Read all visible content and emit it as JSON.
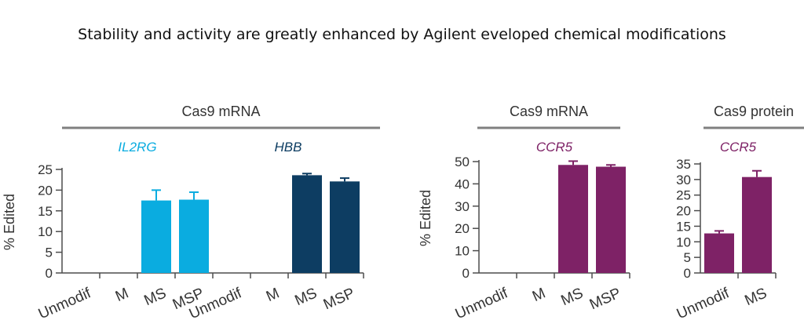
{
  "title": "Stability and activity are greatly enhanced by Agilent eveloped chemical modifications",
  "colors": {
    "IL2RG": "#0aace0",
    "HBB": "#0d3d62",
    "CCR5": "#7e2266",
    "axis": "#4d4d4d",
    "header_rule": "#808080"
  },
  "chart_data": [
    {
      "type": "bar",
      "panel_header": "Cas9 mRNA",
      "ylabel": "% Edited",
      "ylim": [
        0,
        25
      ],
      "yticks": [
        "0",
        "5",
        "10",
        "15",
        "20",
        "25"
      ],
      "categories": [
        "Unmodif",
        "M",
        "MS",
        "MSP",
        "Unmodif",
        "M",
        "MS",
        "MSP"
      ],
      "groups": [
        {
          "label": "IL2RG",
          "color_key": "IL2RG",
          "start": 0,
          "end": 3
        },
        {
          "label": "HBB",
          "color_key": "HBB",
          "start": 4,
          "end": 7
        }
      ],
      "values": [
        null,
        null,
        17.5,
        17.7,
        null,
        null,
        23.6,
        22.1
      ],
      "errors": [
        null,
        null,
        2.5,
        1.8,
        null,
        null,
        0.4,
        0.8
      ]
    },
    {
      "type": "bar",
      "panel_header": "Cas9 mRNA",
      "ylabel": "% Edited",
      "ylim": [
        0,
        50
      ],
      "yticks": [
        "0",
        "10",
        "20",
        "30",
        "40",
        "50"
      ],
      "categories": [
        "Unmodif",
        "M",
        "MS",
        "MSP"
      ],
      "groups": [
        {
          "label": "CCR5",
          "color_key": "CCR5",
          "start": 0,
          "end": 3
        }
      ],
      "values": [
        null,
        null,
        48.5,
        47.7
      ],
      "errors": [
        null,
        null,
        1.7,
        0.8
      ]
    },
    {
      "type": "bar",
      "panel_header": "Cas9 protein",
      "ylabel": "",
      "ylim": [
        0,
        35
      ],
      "yticks": [
        "0",
        "5",
        "10",
        "15",
        "20",
        "25",
        "30",
        "35"
      ],
      "categories": [
        "Unmodif",
        "MS"
      ],
      "groups": [
        {
          "label": "CCR5",
          "color_key": "CCR5",
          "start": 0,
          "end": 1
        }
      ],
      "values": [
        12.7,
        30.8
      ],
      "errors": [
        0.8,
        2.0
      ]
    }
  ]
}
